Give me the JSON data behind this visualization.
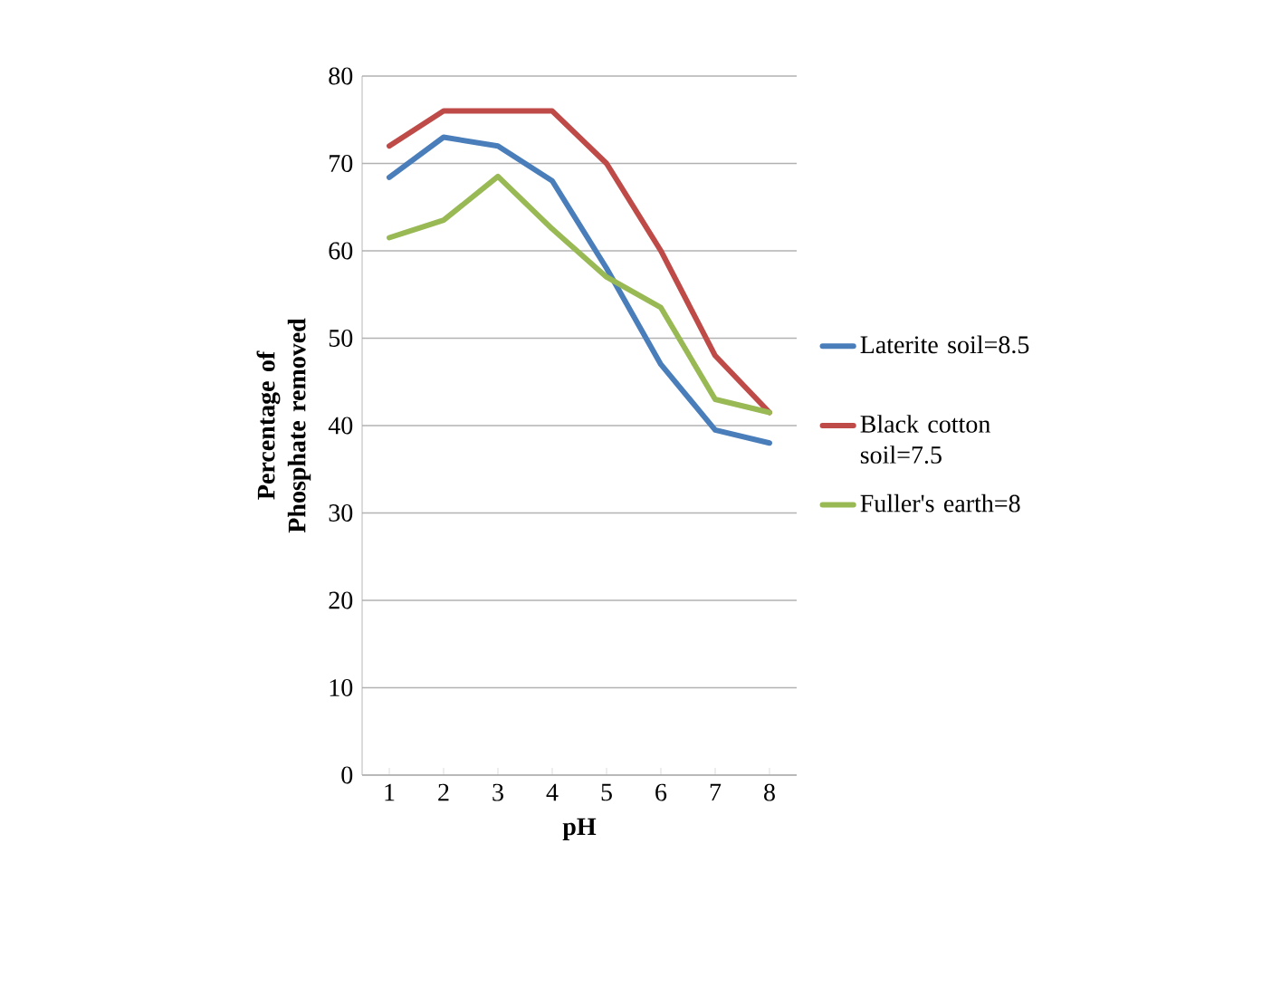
{
  "chart_data": {
    "type": "line",
    "xlabel": "pH",
    "ylabel": "Percentage of Phosphate removed",
    "categories": [
      "1",
      "2",
      "3",
      "4",
      "5",
      "6",
      "7",
      "8"
    ],
    "series": [
      {
        "name": "Laterite soil=8.5",
        "color": "#4a7ebb",
        "values": [
          68.4,
          73,
          72,
          68,
          58,
          47,
          39.5,
          38
        ]
      },
      {
        "name": "Black cotton soil=7.5",
        "color": "#be4b48",
        "values": [
          72,
          76,
          76,
          76,
          70,
          60,
          48,
          41.5
        ]
      },
      {
        "name": "Fuller's earth=8",
        "color": "#98b954",
        "values": [
          61.5,
          63.5,
          68.5,
          62.5,
          57,
          53.5,
          43,
          41.5
        ]
      }
    ],
    "ylim": [
      0,
      80
    ],
    "yticks": [
      0,
      10,
      20,
      30,
      40,
      50,
      60,
      70,
      80
    ],
    "grid": "y",
    "legend": "right",
    "marker": "none",
    "line_style": "solid"
  }
}
